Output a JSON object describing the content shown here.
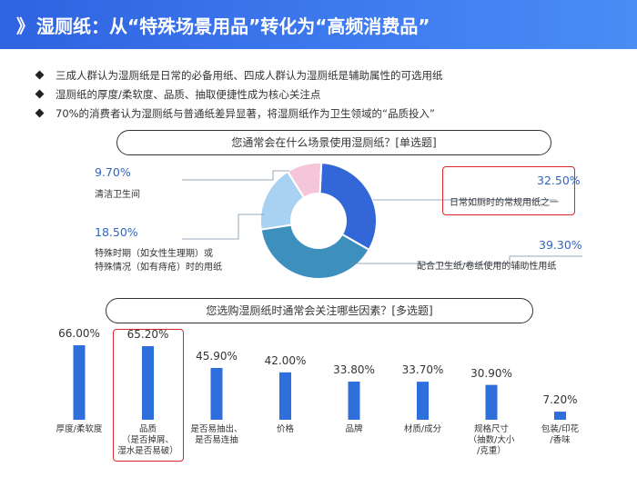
{
  "header": {
    "title": "湿厕纸：从“特殊场景用品”转化为“高频消费品”",
    "chevron": "》"
  },
  "bullets": [
    "三成人群认为湿厕纸是日常的必备用纸、四成人群认为湿厕纸是辅助属性的可选用纸",
    "湿厕纸的厚度/柔软度、品质、抽取便捷性成为核心关注点",
    "70%的消费者认为湿厕纸与普通纸差异显著，将湿厕纸作为卫生领域的“品质投入”"
  ],
  "q1": "您通常会在什么场景使用湿厕纸？[单选题]",
  "q2": "您选购湿厕纸时通常会关注哪些因素？[多选题]",
  "colors": {
    "header": "#3a72ea",
    "bar": "#2f6fdb",
    "donut_dark": "#3366d6",
    "donut_teal": "#3d8fbd",
    "donut_light": "#a9d2f2",
    "donut_pink": "#f5c6d9",
    "highlight": "#d9272e",
    "value_text": "#2f63c8"
  },
  "chart_data": [
    {
      "type": "pie",
      "title": "您通常会在什么场景使用湿厕纸？[单选题]",
      "slices": [
        {
          "label": "日常如厕时的常规用纸之一",
          "value": 32.5,
          "value_text": "32.50%",
          "color": "#3366d6",
          "highlighted": true
        },
        {
          "label": "配合卫生纸/卷纸使用的辅助性用纸",
          "value": 39.3,
          "value_text": "39.30%",
          "color": "#3d8fbd"
        },
        {
          "label": "特殊时期（如女性生理期）或\n特殊情况（如有痔疮）时的用纸",
          "value": 18.5,
          "value_text": "18.50%",
          "color": "#a9d2f2"
        },
        {
          "label": "清洁卫生间",
          "value": 9.7,
          "value_text": "9.70%",
          "color": "#f5c6d9"
        }
      ]
    },
    {
      "type": "bar",
      "title": "您选购湿厕纸时通常会关注哪些因素？[多选题]",
      "categories": [
        "厚度/柔软度",
        "品质\n（是否掉屑、\n湿水是否易破）",
        "是否易抽出、\n是否易连抽",
        "价格",
        "品牌",
        "材质/成分",
        "规格尺寸\n（抽数/大小\n/克重）",
        "包装/印花\n/香味"
      ],
      "values": [
        66.0,
        65.2,
        45.9,
        42.0,
        33.8,
        33.7,
        30.9,
        7.2
      ],
      "value_labels": [
        "66.00%",
        "65.20%",
        "45.90%",
        "42.00%",
        "33.80%",
        "33.70%",
        "30.90%",
        "7.20%"
      ],
      "highlighted_index": 1,
      "ylim": [
        0,
        100
      ]
    }
  ]
}
